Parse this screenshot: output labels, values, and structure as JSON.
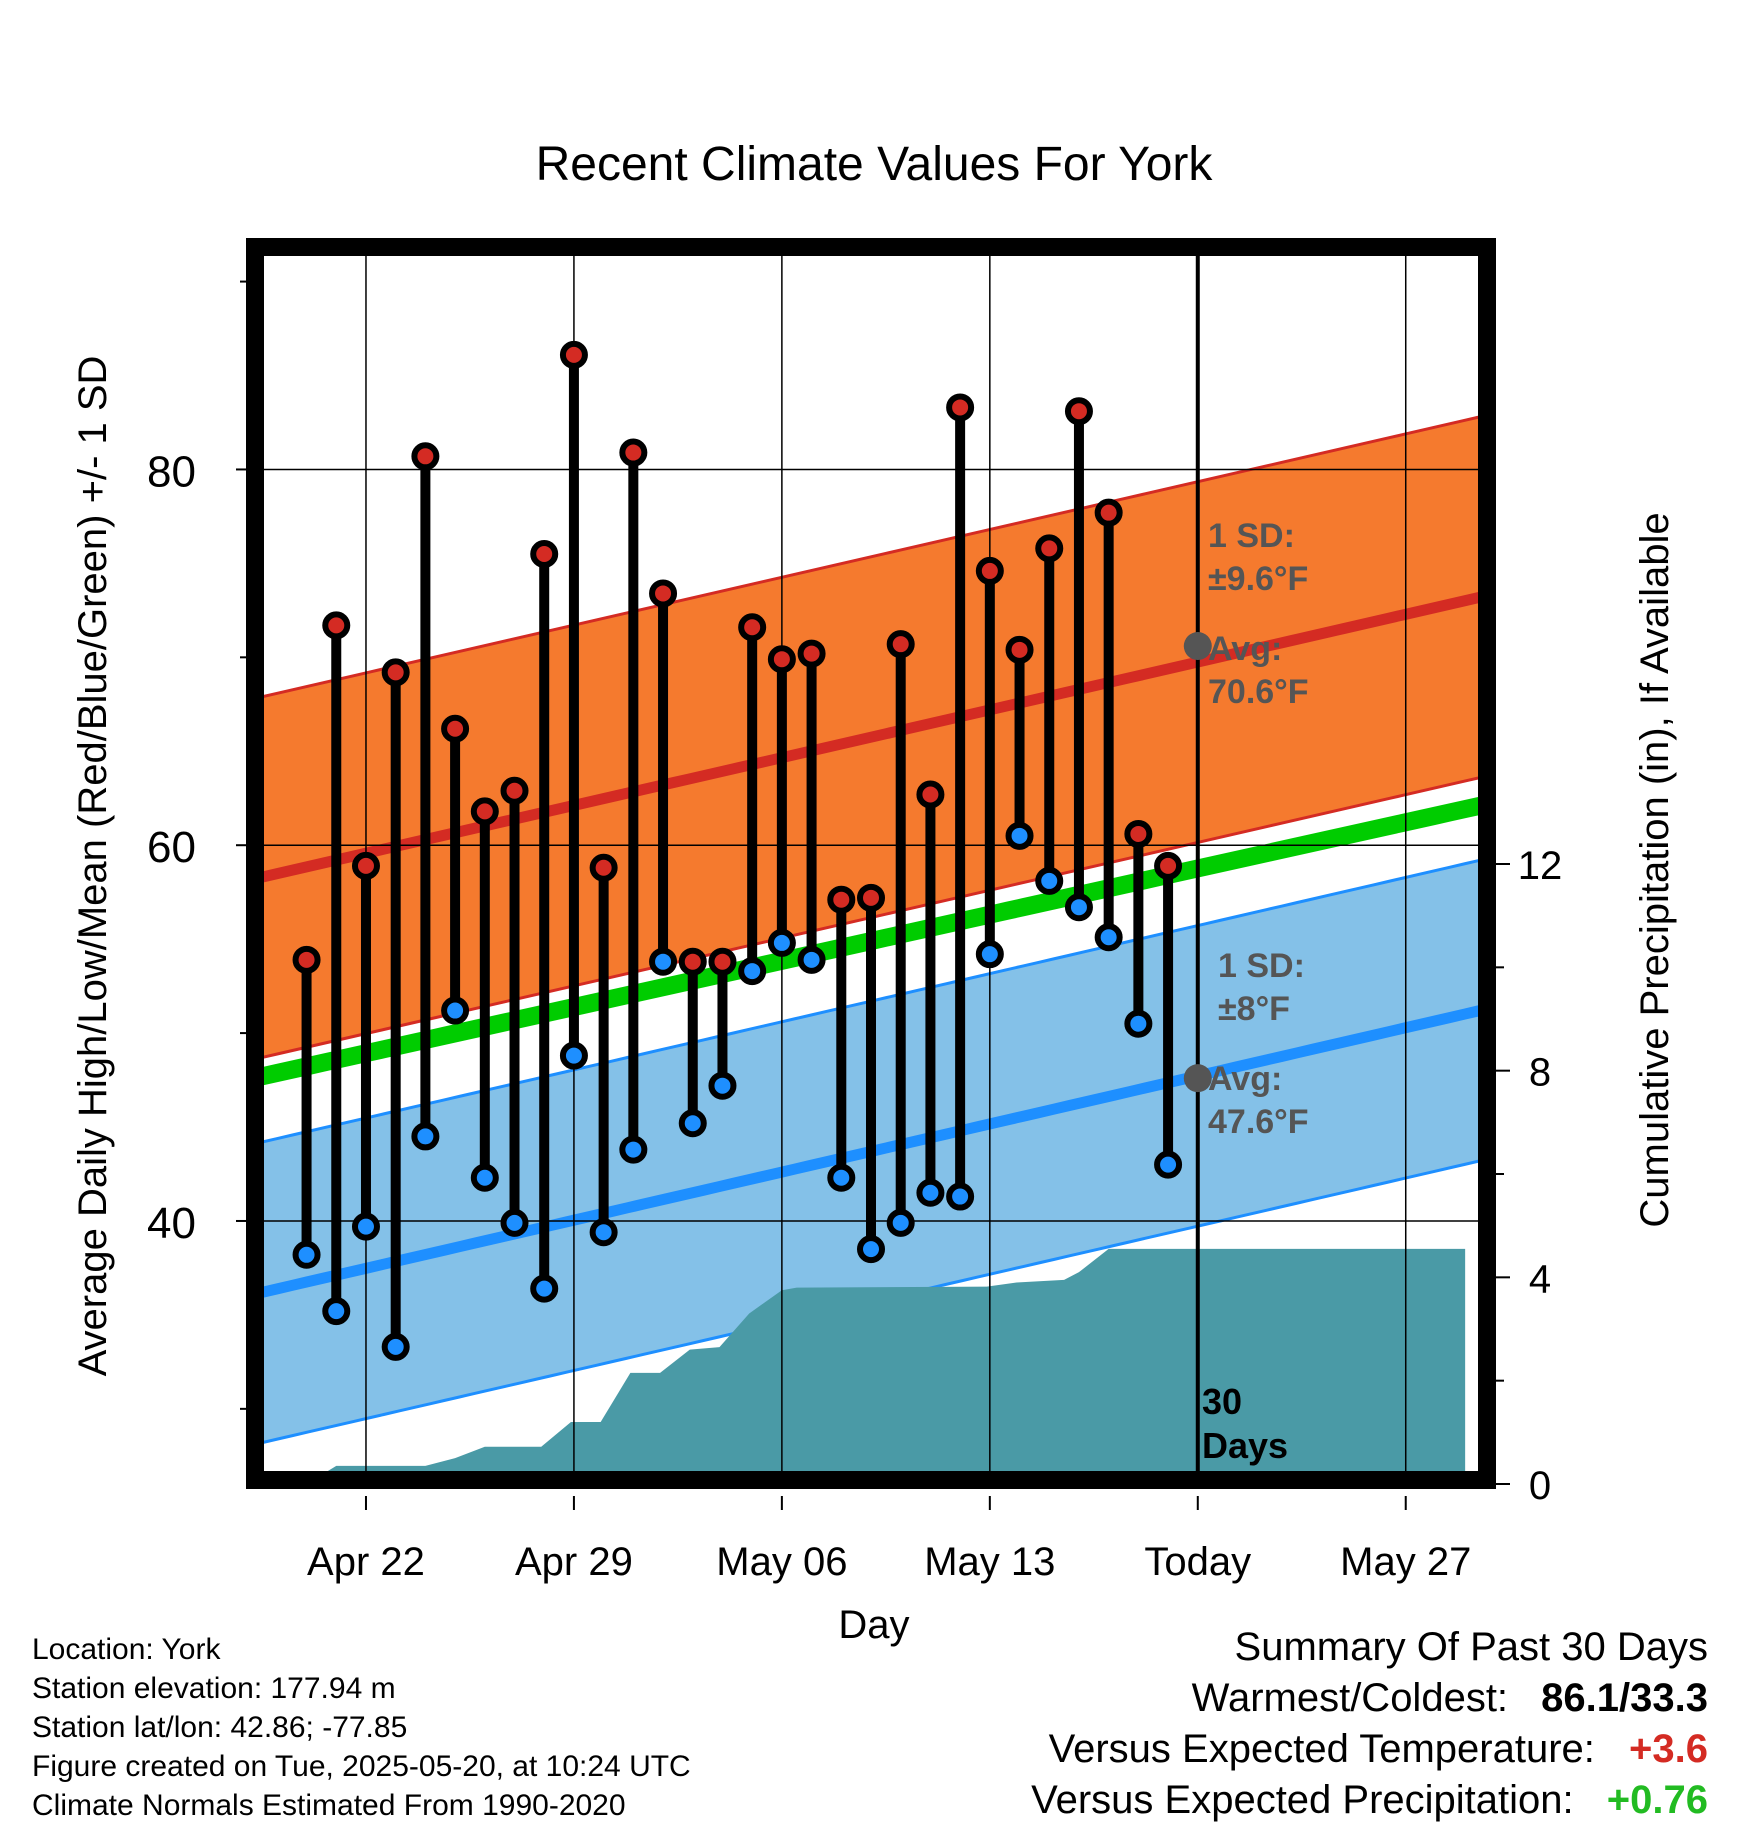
{
  "chart_data": {
    "type": "line",
    "title": "Recent Climate Values For York",
    "xlabel": "Day",
    "ylabel": "Average Daily High/Low/Mean (Red/Blue/Green) +/- 1 SD",
    "y2label": "Cumulative Precipitation (in), If Available",
    "xlim": [
      -0.5,
      40.5
    ],
    "ylim": [
      26,
      92
    ],
    "y2lim": [
      0,
      24
    ],
    "yticks": [
      40,
      60,
      80
    ],
    "y2ticks": [
      0,
      4,
      8,
      12
    ],
    "xticks": [
      {
        "x": 3,
        "label": "Apr 22"
      },
      {
        "x": 10,
        "label": "Apr 29"
      },
      {
        "x": 17,
        "label": "May 06"
      },
      {
        "x": 24,
        "label": "May 13"
      },
      {
        "x": 31,
        "label": "Today"
      },
      {
        "x": 38,
        "label": "May 27"
      }
    ],
    "days": [
      1,
      2,
      3,
      4,
      5,
      6,
      7,
      8,
      9,
      10,
      11,
      12,
      13,
      14,
      15,
      16,
      17,
      18,
      19,
      20,
      21,
      22,
      23,
      24,
      25,
      26,
      27,
      28,
      29,
      30
    ],
    "highs": [
      53.9,
      71.7,
      58.9,
      69.2,
      80.7,
      66.2,
      61.8,
      62.9,
      75.5,
      86.1,
      58.8,
      80.9,
      73.4,
      53.8,
      53.8,
      71.6,
      69.9,
      70.2,
      57.1,
      57.2,
      70.7,
      62.7,
      83.3,
      74.6,
      70.4,
      75.8,
      83.1,
      77.7,
      60.6,
      58.9
    ],
    "lows": [
      38.2,
      35.2,
      39.7,
      33.3,
      44.5,
      51.2,
      42.3,
      39.9,
      36.4,
      48.8,
      39.4,
      43.8,
      53.8,
      45.2,
      47.2,
      53.3,
      54.8,
      53.9,
      42.3,
      38.5,
      39.9,
      41.5,
      41.3,
      54.2,
      60.5,
      58.1,
      56.7,
      55.1,
      50.5,
      43.0
    ],
    "normal_high": {
      "name": "Avg High",
      "start": 58.3,
      "end": 73.2,
      "sd": 9.6
    },
    "normal_low": {
      "name": "Avg Low",
      "start": 36.2,
      "end": 51.2,
      "sd": 8.0
    },
    "normal_mean": {
      "name": "Avg Mean",
      "start": 47.7,
      "end": 62.1
    },
    "precip_cumulative": [
      {
        "x": 1.0,
        "y": 0.0
      },
      {
        "x": 2.0,
        "y": 0.35
      },
      {
        "x": 5.0,
        "y": 0.35
      },
      {
        "x": 6.0,
        "y": 0.5
      },
      {
        "x": 7.0,
        "y": 0.72
      },
      {
        "x": 8.9,
        "y": 0.72
      },
      {
        "x": 9.9,
        "y": 1.2
      },
      {
        "x": 10.9,
        "y": 1.2
      },
      {
        "x": 11.9,
        "y": 2.15
      },
      {
        "x": 12.9,
        "y": 2.15
      },
      {
        "x": 13.9,
        "y": 2.6
      },
      {
        "x": 14.9,
        "y": 2.65
      },
      {
        "x": 15.9,
        "y": 3.3
      },
      {
        "x": 17.0,
        "y": 3.75
      },
      {
        "x": 17.5,
        "y": 3.8
      },
      {
        "x": 23.9,
        "y": 3.82
      },
      {
        "x": 24.9,
        "y": 3.9
      },
      {
        "x": 26.5,
        "y": 3.95
      },
      {
        "x": 27.0,
        "y": 4.1
      },
      {
        "x": 28.0,
        "y": 4.55
      },
      {
        "x": 31.0,
        "y": 4.55
      },
      {
        "x": 40.0,
        "y": 4.55
      }
    ],
    "today_x": 31,
    "annotations": {
      "high_sd_title": "1 SD:",
      "high_sd_value": "±9.6°F",
      "high_avg_title": "Avg:",
      "high_avg_value": "70.6°F",
      "high_avg_point": 70.6,
      "low_sd_title": "1 SD:",
      "low_sd_value": "±8°F",
      "low_avg_title": "Avg:",
      "low_avg_value": "47.6°F",
      "low_avg_point": 47.6,
      "days_line1": "30",
      "days_line2": "Days"
    },
    "colors": {
      "high_band": "#f57a2e",
      "high_line": "#d42b23",
      "low_band": "#84c1e8",
      "low_line": "#1e8fff",
      "mean_line": "#00cc00",
      "precip": "#4a9aa6",
      "high_marker": "#d42b23",
      "low_marker": "#1e8fff",
      "annotation": "#555555"
    }
  },
  "info": {
    "location": "Location: York",
    "elevation": "Station elevation: 177.94 m",
    "latlon": "Station lat/lon: 42.86; -77.85",
    "created": "Figure created on Tue, 2025-05-20, at 10:24 UTC",
    "normals": "Climate Normals Estimated From 1990-2020"
  },
  "summary": {
    "title": "Summary Of Past 30 Days",
    "warmest_label": "Warmest/Coldest:",
    "warmest_value": "86.1/33.3",
    "temp_label": "Versus Expected Temperature:",
    "temp_value": "+3.6",
    "temp_color": "#d42b23",
    "precip_label": "Versus Expected Precipitation:",
    "precip_value": "+0.76",
    "precip_color": "#22bb22"
  }
}
